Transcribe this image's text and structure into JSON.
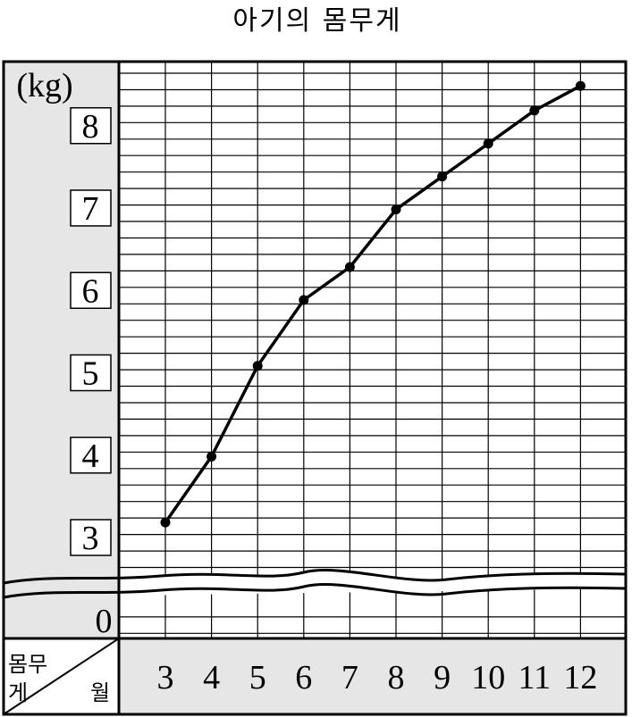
{
  "chart_data": {
    "type": "line",
    "title": "아기의 몸무게",
    "unit_label": "(kg)",
    "x_header": "월",
    "y_header": "몸무게",
    "y_header_parts": [
      "몸무",
      "게"
    ],
    "y_tick_labels": [
      "3",
      "4",
      "5",
      "6",
      "7",
      "8"
    ],
    "y_zero_label": "0",
    "y_axis_break": true,
    "ylim": [
      3,
      8.8
    ],
    "grid": true,
    "categories": [
      "3",
      "4",
      "5",
      "6",
      "7",
      "8",
      "9",
      "10",
      "11",
      "12"
    ],
    "series": [
      {
        "values": [
          3.4,
          4.2,
          5.3,
          6.1,
          6.5,
          7.2,
          7.6,
          8.0,
          8.4,
          8.7
        ]
      }
    ]
  },
  "colors": {
    "panel": "#e6e6e6",
    "line": "#000000",
    "grid": "#000000",
    "background": "#ffffff"
  }
}
